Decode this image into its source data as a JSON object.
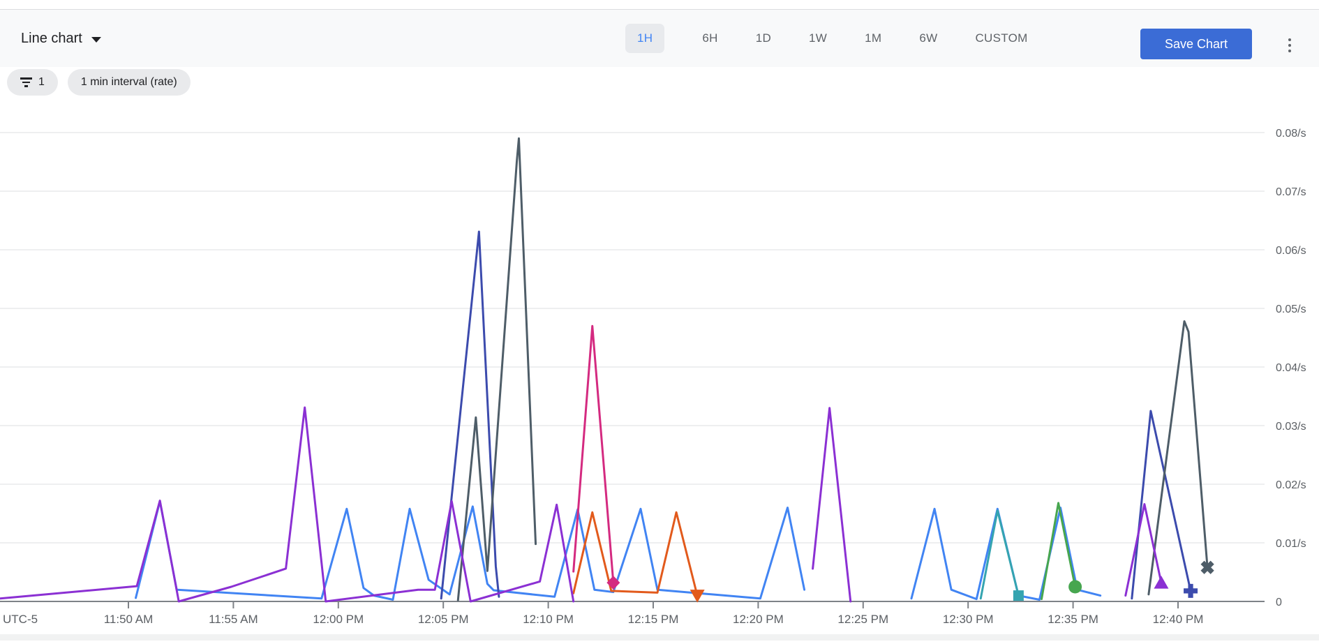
{
  "toolbar": {
    "chart_type_label": "Line chart",
    "time_ranges": [
      "1H",
      "6H",
      "1D",
      "1W",
      "1M",
      "6W",
      "CUSTOM"
    ],
    "selected_range": "1H",
    "save_label": "Save Chart"
  },
  "filters": {
    "filter_count": "1",
    "interval_label": "1 min interval (rate)"
  },
  "colors": {
    "save_button": "#3B6CD6",
    "selected_range_bg": "#E8EAED",
    "selected_range_text": "#4285F4",
    "chip_bg": "#E9EAEC",
    "grid": "#E9EAEB",
    "axis_line": "#7E8287",
    "axis_text": "#5A5E63"
  },
  "chart_data": {
    "type": "line",
    "title": "",
    "xlabel": "",
    "ylabel": "",
    "grid": true,
    "legend": "none",
    "y_axis": {
      "min": 0,
      "max": 0.08,
      "unit": "/s",
      "ticks": [
        {
          "value": 0,
          "label": "0"
        },
        {
          "value": 0.01,
          "label": "0.01/s"
        },
        {
          "value": 0.02,
          "label": "0.02/s"
        },
        {
          "value": 0.03,
          "label": "0.03/s"
        },
        {
          "value": 0.04,
          "label": "0.04/s"
        },
        {
          "value": 0.05,
          "label": "0.05/s"
        },
        {
          "value": 0.06,
          "label": "0.06/s"
        },
        {
          "value": 0.07,
          "label": "0.07/s"
        },
        {
          "value": 0.08,
          "label": "0.08/s"
        }
      ]
    },
    "x_axis": {
      "timezone_label": "UTC-5",
      "ticks": [
        {
          "minute": 0,
          "label": "11:50 AM"
        },
        {
          "minute": 5,
          "label": "11:55 AM"
        },
        {
          "minute": 10,
          "label": "12:00 PM"
        },
        {
          "minute": 15,
          "label": "12:05 PM"
        },
        {
          "minute": 20,
          "label": "12:10 PM"
        },
        {
          "minute": 25,
          "label": "12:15 PM"
        },
        {
          "minute": 30,
          "label": "12:20 PM"
        },
        {
          "minute": 35,
          "label": "12:25 PM"
        },
        {
          "minute": 40,
          "label": "12:30 PM"
        },
        {
          "minute": 45,
          "label": "12:35 PM"
        },
        {
          "minute": 50,
          "label": "12:40 PM"
        }
      ]
    },
    "series": [
      {
        "name": "series-blue",
        "color": "#4184F3",
        "marker": null,
        "segments": [
          [
            [
              0.35,
              0.0006
            ],
            [
              1.5,
              0.0171
            ],
            [
              2.3,
              0.002
            ],
            [
              9.2,
              0.0005
            ],
            [
              10.4,
              0.0158
            ],
            [
              11.2,
              0.0023
            ],
            [
              11.7,
              0.001
            ],
            [
              12.6,
              0.0003
            ],
            [
              13.4,
              0.0158
            ],
            [
              14.3,
              0.0037
            ],
            [
              15.3,
              0.0012
            ],
            [
              16.4,
              0.0162
            ],
            [
              17.1,
              0.003
            ],
            [
              17.4,
              0.0019
            ],
            [
              20.3,
              0.0008
            ],
            [
              21.4,
              0.0157
            ],
            [
              22.2,
              0.002
            ],
            [
              23.1,
              0.0016
            ],
            [
              24.4,
              0.0158
            ],
            [
              25.2,
              0.002
            ],
            [
              30.1,
              0.0005
            ],
            [
              31.4,
              0.016
            ],
            [
              32.2,
              0.002
            ]
          ],
          [
            [
              37.3,
              0.0005
            ],
            [
              38.4,
              0.0158
            ],
            [
              39.2,
              0.002
            ],
            [
              40.4,
              0.0004
            ],
            [
              41.4,
              0.0158
            ],
            [
              42.4,
              0.001
            ],
            [
              43.4,
              0.0003
            ],
            [
              44.4,
              0.016
            ],
            [
              45.2,
              0.002
            ],
            [
              46.3,
              0.001
            ]
          ]
        ]
      },
      {
        "name": "series-orange",
        "color": "#E25A1C",
        "marker": "triangle-down",
        "segments": [
          [
            [
              21.2,
              0.0014
            ],
            [
              22.1,
              0.0152
            ],
            [
              23.0,
              0.0018
            ],
            [
              25.2,
              0.0015
            ],
            [
              26.1,
              0.0152
            ],
            [
              27.1,
              0.001
            ]
          ]
        ]
      },
      {
        "name": "series-pink",
        "color": "#D42A80",
        "marker": "diamond",
        "segments": [
          [
            [
              21.2,
              0.0051
            ],
            [
              22.1,
              0.047
            ],
            [
              23.1,
              0.0032
            ]
          ]
        ]
      },
      {
        "name": "series-teal",
        "color": "#35A4B0",
        "marker": "square",
        "segments": [
          [
            [
              40.6,
              0.0005
            ],
            [
              41.4,
              0.0155
            ],
            [
              42.4,
              0.001
            ]
          ]
        ]
      },
      {
        "name": "series-green",
        "color": "#47A64F",
        "marker": "circle",
        "segments": [
          [
            [
              43.5,
              0.0004
            ],
            [
              44.3,
              0.0168
            ],
            [
              45.1,
              0.0025
            ]
          ]
        ]
      },
      {
        "name": "series-indigo",
        "color": "#3C4BAD",
        "marker": "plus",
        "segments": [
          [
            [
              14.9,
              0.0005
            ],
            [
              16.7,
              0.0631
            ],
            [
              17.5,
              0.006
            ],
            [
              17.65,
              0.0008
            ]
          ],
          [
            [
              47.8,
              0.0005
            ],
            [
              48.7,
              0.0325
            ],
            [
              50.6,
              0.0018
            ]
          ]
        ]
      },
      {
        "name": "series-slate",
        "color": "#4E5D68",
        "marker": "x",
        "segments": [
          [
            [
              15.7,
              0.0002
            ],
            [
              16.55,
              0.0314
            ],
            [
              17.1,
              0.0052
            ],
            [
              18.5,
              0.075
            ],
            [
              18.6,
              0.079
            ],
            [
              19.4,
              0.0098
            ]
          ],
          [
            [
              48.6,
              0.0012
            ],
            [
              50.3,
              0.0478
            ],
            [
              50.5,
              0.046
            ],
            [
              51.4,
              0.0058
            ]
          ]
        ]
      },
      {
        "name": "series-purple",
        "color": "#8B30D3",
        "marker": "triangle-up",
        "segments": [
          [
            [
              -6.1,
              0.0005
            ],
            [
              0.4,
              0.0026
            ],
            [
              1.5,
              0.0172
            ],
            [
              2.4,
              0.0
            ],
            [
              4.9,
              0.0025
            ],
            [
              7.5,
              0.0056
            ],
            [
              8.4,
              0.0331
            ],
            [
              9.4,
              0.0
            ],
            [
              13.8,
              0.002
            ],
            [
              14.6,
              0.002
            ],
            [
              15.4,
              0.0171
            ],
            [
              16.3,
              0.0
            ],
            [
              19.6,
              0.0034
            ],
            [
              20.4,
              0.0165
            ],
            [
              21.2,
              0.0
            ]
          ],
          [
            [
              32.6,
              0.0056
            ],
            [
              33.4,
              0.033
            ],
            [
              34.4,
              0.0
            ]
          ],
          [
            [
              47.5,
              0.001
            ],
            [
              48.4,
              0.0166
            ],
            [
              49.2,
              0.0032
            ]
          ]
        ]
      }
    ]
  }
}
